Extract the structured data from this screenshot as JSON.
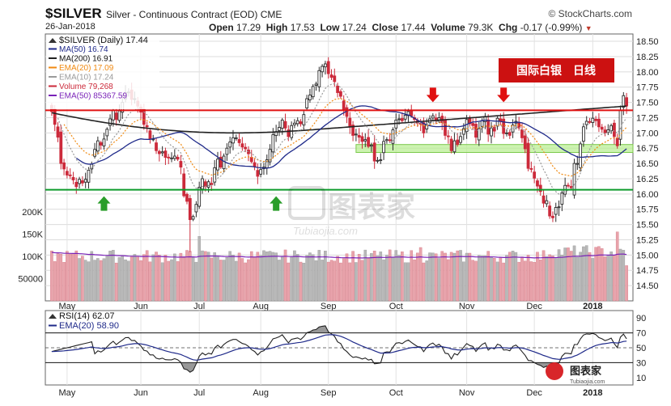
{
  "header": {
    "symbol": "$SILVER",
    "subtitle": "Silver - Continuous Contract (EOD)  CME",
    "brand": "© StockCharts.com",
    "date": "26-Jan-2018",
    "open_label": "Open",
    "open": "17.29",
    "high_label": "High",
    "high": "17.53",
    "low_label": "Low",
    "low": "17.24",
    "close_label": "Close",
    "close": "17.44",
    "volume_label": "Volume",
    "volume": "79.3K",
    "chg_label": "Chg",
    "chg": "-0.17 (-0.99%)"
  },
  "colors": {
    "up": "#2b2b2b",
    "down": "#cc2a3b",
    "ma50": "#1f2a8a",
    "ma200": "#222222",
    "ema20": "#f08a12",
    "ema10": "#9a9a9a",
    "volema": "#7a22b8",
    "resistance": "#e01010",
    "support": "#0e9b2b",
    "zone": "#b6ee8f",
    "up_arrow": "#2a9d2a",
    "down_arrow": "#e01010"
  },
  "legend": {
    "title": "$SILVER (Daily) 17.44",
    "items": [
      {
        "label": "MA(50) 16.74",
        "color": "#1f2a8a"
      },
      {
        "label": "MA(200) 16.91",
        "color": "#222222"
      },
      {
        "label": "EMA(20) 17.09",
        "color": "#f08a12"
      },
      {
        "label": "EMA(10) 17.24",
        "color": "#9a9a9a"
      },
      {
        "label": "Volume 79,268",
        "color": "#cc2a3b"
      },
      {
        "label": "EMA(50) 85367.59",
        "color": "#7a22b8"
      }
    ]
  },
  "annotation": "国际白银　日线",
  "watermark": {
    "main": "图表家",
    "sub": "Tubiaojia.com"
  },
  "watermark_small": {
    "main": "图表家",
    "sub": "Tubiaojia.com"
  },
  "rsi_legend": [
    {
      "label": "RSI(14) 62.07",
      "color": "#222222"
    },
    {
      "label": "EMA(20) 58.90",
      "color": "#1f2a8a"
    }
  ],
  "chart_data": {
    "type": "candlestick",
    "title": "$SILVER (Daily) 17.44",
    "y_range": [
      14.25,
      18.62
    ],
    "y_ticks": [
      14.5,
      14.75,
      15.0,
      15.25,
      15.5,
      15.75,
      16.0,
      16.25,
      16.5,
      16.75,
      17.0,
      17.25,
      17.5,
      17.75,
      18.0,
      18.25,
      18.5
    ],
    "months": [
      "May",
      "Jun",
      "Jul",
      "Aug",
      "Sep",
      "Oct",
      "Nov",
      "Dec",
      "2018"
    ],
    "month_bar_index": [
      5,
      29,
      48,
      68,
      90,
      112,
      135,
      157,
      176
    ],
    "resistance": 17.37,
    "support": 16.07,
    "zone": [
      16.68,
      16.81
    ],
    "up_arrow_bars": [
      17,
      73
    ],
    "down_arrow_bars": [
      124,
      147
    ],
    "closes": [
      17.35,
      17.14,
      16.93,
      16.5,
      16.41,
      16.31,
      16.3,
      16.23,
      16.12,
      16.24,
      16.18,
      16.24,
      16.39,
      16.49,
      16.73,
      16.87,
      16.8,
      16.9,
      17.06,
      17.23,
      17.37,
      17.22,
      17.36,
      17.5,
      17.66,
      17.67,
      17.55,
      17.56,
      17.44,
      17.34,
      17.14,
      17.1,
      16.9,
      16.9,
      16.71,
      16.66,
      16.69,
      16.6,
      16.59,
      16.59,
      16.62,
      16.57,
      16.44,
      15.97,
      15.88,
      15.58,
      15.63,
      15.83,
      16.11,
      16.25,
      16.12,
      16.2,
      16.15,
      16.43,
      16.57,
      16.44,
      16.62,
      16.75,
      16.85,
      16.92,
      16.92,
      16.84,
      16.77,
      16.74,
      16.66,
      16.53,
      16.45,
      16.29,
      16.4,
      16.44,
      16.56,
      16.73,
      16.97,
      17.02,
      17.09,
      17.21,
      17.08,
      16.94,
      17.12,
      17.16,
      17.2,
      17.15,
      17.3,
      17.56,
      17.62,
      17.76,
      17.8,
      18.02,
      18.09,
      18.13,
      17.97,
      17.91,
      17.84,
      17.66,
      17.6,
      17.38,
      17.27,
      17.1,
      16.96,
      16.98,
      16.93,
      16.86,
      16.89,
      16.78,
      16.8,
      16.54,
      16.55,
      16.56,
      16.86,
      16.89,
      16.88,
      17.05,
      17.21,
      17.23,
      17.2,
      17.29,
      17.35,
      17.28,
      17.22,
      17.16,
      17.15,
      17.0,
      17.13,
      17.23,
      17.28,
      17.2,
      17.25,
      17.17,
      16.96,
      16.94,
      16.71,
      16.87,
      16.81,
      16.94,
      17.07,
      17.22,
      17.15,
      17.12,
      16.93,
      17.07,
      17.2,
      17.27,
      16.98,
      17.08,
      17.03,
      17.24,
      17.19,
      16.99,
      17.0,
      16.96,
      17.13,
      17.19,
      17.08,
      16.92,
      16.74,
      16.42,
      16.41,
      16.26,
      16.13,
      16.04,
      15.85,
      15.89,
      15.64,
      15.61,
      15.78,
      15.79,
      16.02,
      16.14,
      16.13,
      16.1,
      16.5,
      16.5,
      16.82,
      17.1,
      17.19,
      17.18,
      17.24,
      17.2,
      17.1,
      17.06,
      17.0,
      17.05,
      17.12,
      16.94,
      16.79,
      17.37,
      17.61,
      17.44
    ],
    "ma50_last": 16.74,
    "ma200_last": 16.91,
    "ema20_last": 17.09,
    "ema10_last": 17.24,
    "volume_ticks": [
      50000,
      100000,
      150000,
      200000
    ],
    "volume_tick_labels": [
      "50000",
      "100K",
      "150K",
      "200K"
    ],
    "volume_last": 79268,
    "volume_ema50_last": 85367.59,
    "rsi_range": [
      0,
      100
    ],
    "rsi_ticks": [
      10,
      30,
      50,
      70,
      90
    ],
    "rsi_last": 62.07,
    "rsi_ema_last": 58.9
  }
}
